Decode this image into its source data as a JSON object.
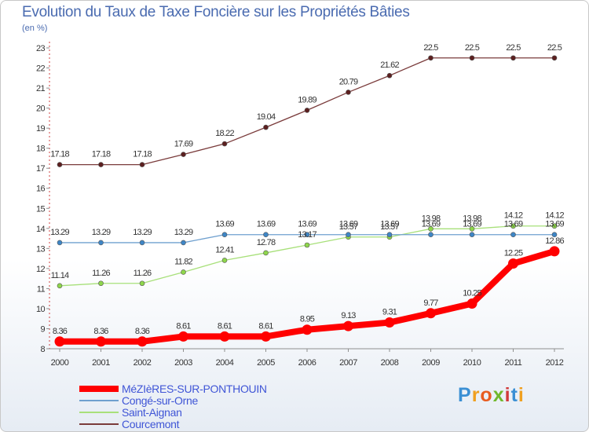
{
  "chart_data": {
    "type": "line",
    "title": "Evolution du Taux de Taxe Foncière sur les Propriétés Bâties",
    "ylabel": "(en %)",
    "xlabel": "",
    "ylim": [
      8,
      23
    ],
    "yticks": [
      "8",
      "9",
      "10",
      "11",
      "12",
      "13",
      "14",
      "15",
      "16",
      "17",
      "18",
      "19",
      "20",
      "21",
      "22",
      "23"
    ],
    "categories": [
      "2000",
      "2001",
      "2002",
      "2003",
      "2004",
      "2005",
      "2006",
      "2007",
      "2008",
      "2009",
      "2010",
      "2011",
      "2012"
    ],
    "series": [
      {
        "name": "MéZIèRES-SUR-PONTHOUIN",
        "color": "#ff0000",
        "marker": "#ff0000",
        "values": [
          8.36,
          8.36,
          8.36,
          8.61,
          8.61,
          8.61,
          8.95,
          9.13,
          9.31,
          9.77,
          10.25,
          12.25,
          12.86
        ],
        "labels": [
          "8.36",
          "8.36",
          "8.36",
          "8.61",
          "8.61",
          "8.61",
          "8.95",
          "9.13",
          "9.31",
          "9.77",
          "10.25",
          "12.25",
          "12.86"
        ]
      },
      {
        "name": "Congé-sur-Orne",
        "color": "#6fa0cf",
        "marker": "#3e86c6",
        "values": [
          13.29,
          13.29,
          13.29,
          13.29,
          13.69,
          13.69,
          13.69,
          13.69,
          13.69,
          13.69,
          13.69,
          13.69,
          13.69
        ],
        "labels": [
          "13.29",
          "13.29",
          "13.29",
          "13.29",
          "13.69",
          "13.69",
          "13.69",
          "13.69",
          "13.69",
          "13.69",
          "13.69",
          "13.69",
          "13.69"
        ]
      },
      {
        "name": "Saint-Aignan",
        "color": "#a8e07a",
        "marker": "#8ed64b",
        "values": [
          11.14,
          11.26,
          11.26,
          11.82,
          12.41,
          12.78,
          13.17,
          13.57,
          13.57,
          13.98,
          13.98,
          14.12,
          14.12
        ],
        "labels": [
          "11.14",
          "11.26",
          "11.26",
          "11.82",
          "12.41",
          "12.78",
          "13.17",
          "13.57",
          "13.57",
          "13.98",
          "13.98",
          "14.12",
          "14.12"
        ]
      },
      {
        "name": "Courcemont",
        "color": "#7a3b3b",
        "marker": "#5c1f1f",
        "values": [
          17.18,
          17.18,
          17.18,
          17.69,
          18.22,
          19.04,
          19.89,
          20.79,
          21.62,
          22.5,
          22.5,
          22.5,
          22.5
        ],
        "labels": [
          "17.18",
          "17.18",
          "17.18",
          "17.69",
          "18.22",
          "19.04",
          "19.89",
          "20.79",
          "21.62",
          "22.5",
          "22.5",
          "22.5",
          "22.5"
        ]
      }
    ],
    "legend_placement": "bottom-left",
    "grid": false
  },
  "logo": {
    "text": "Proxiti",
    "letters": [
      "P",
      "r",
      "o",
      "x",
      "i",
      "t",
      "i"
    ],
    "colors": [
      "#3a8fd4",
      "#f0a020",
      "#e85c20",
      "#70b82c",
      "#d13a3a",
      "#3a8fd4",
      "#f0a020"
    ]
  }
}
